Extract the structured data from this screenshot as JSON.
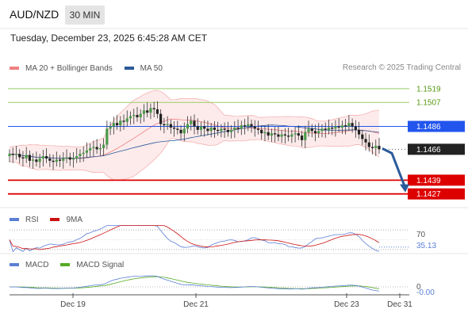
{
  "header": {
    "pair": "AUD/NZD",
    "timeframe": "30 MIN",
    "timestamp": "Tuesday, December 23, 2025 6:45:28 AM CET"
  },
  "legend": {
    "items": [
      {
        "label": "MA 20 + Bollinger Bands",
        "color": "#f08080"
      },
      {
        "label": "MA 50",
        "color": "#2a5a9a"
      }
    ],
    "credit": "Research © 2025 Trading Central"
  },
  "rsi_legend": {
    "items": [
      {
        "label": "RSI",
        "color": "#5b7fd6"
      },
      {
        "label": "9MA",
        "color": "#cc1111"
      }
    ]
  },
  "macd_legend": {
    "items": [
      {
        "label": "MACD",
        "color": "#5b7fd6"
      },
      {
        "label": "MACD Signal",
        "color": "#55aa22"
      }
    ]
  },
  "chart_data": {
    "type": "candlestick",
    "ylim": [
      1.1415,
      1.153
    ],
    "x_ticks": [
      "Dec 19",
      "Dec 21",
      "Dec 23",
      "Dec 31"
    ],
    "levels": [
      {
        "value": 1.1519,
        "label": "1.1519",
        "color": "#99cc66",
        "label_style": "text"
      },
      {
        "value": 1.1507,
        "label": "1.1507",
        "color": "#99cc66",
        "label_style": "text"
      },
      {
        "value": 1.1486,
        "label": "1.1486",
        "color": "#2255ee",
        "label_style": "box"
      },
      {
        "value": 1.1439,
        "label": "1.1439",
        "color": "#dd0000",
        "label_style": "box"
      },
      {
        "value": 1.1427,
        "label": "1.1427",
        "color": "#dd0000",
        "label_style": "box"
      }
    ],
    "current_price": {
      "value": 1.1466,
      "label": "1.1466",
      "color": "#222222"
    },
    "closes": [
      1.1462,
      1.1461,
      1.1462,
      1.1459,
      1.1458,
      1.1461,
      1.1456,
      1.1457,
      1.1455,
      1.1458,
      1.146,
      1.1458,
      1.1456,
      1.1455,
      1.1457,
      1.1456,
      1.1458,
      1.1459,
      1.1457,
      1.1458,
      1.146,
      1.1462,
      1.1463,
      1.1465,
      1.1467,
      1.1468,
      1.1466,
      1.1467,
      1.147,
      1.1484,
      1.1486,
      1.1489,
      1.1487,
      1.1491,
      1.149,
      1.1493,
      1.1495,
      1.1496,
      1.1494,
      1.1497,
      1.15,
      1.1498,
      1.1502,
      1.1501,
      1.1497,
      1.1488,
      1.1487,
      1.1488,
      1.1485,
      1.1484,
      1.1483,
      1.148,
      1.1484,
      1.1488,
      1.1491,
      1.1486,
      1.1483,
      1.1486,
      1.1484,
      1.1482,
      1.1485,
      1.1483,
      1.1482,
      1.1484,
      1.1483,
      1.1481,
      1.1483,
      1.1485,
      1.1484,
      1.1487,
      1.1486,
      1.1488,
      1.1486,
      1.1484,
      1.1483,
      1.148,
      1.1481,
      1.1478,
      1.148,
      1.1479,
      1.1477,
      1.1479,
      1.1478,
      1.1477,
      1.1479,
      1.148,
      1.1478,
      1.1474,
      1.1481,
      1.1484,
      1.1482,
      1.148,
      1.1482,
      1.1484,
      1.1483,
      1.1485,
      1.1484,
      1.1486,
      1.1485,
      1.1487,
      1.1486,
      1.1489,
      1.1486,
      1.1483,
      1.1479,
      1.1475,
      1.1472,
      1.1468,
      1.1467,
      1.1469,
      1.1466
    ],
    "rsi_reference": {
      "value": 70,
      "label": "70"
    },
    "rsi_value": {
      "value": 35.13,
      "label": "35.13"
    },
    "macd_reference": {
      "value": 0,
      "label": "0"
    },
    "macd_value": {
      "value": -0.0,
      "label": "-0.00"
    }
  }
}
